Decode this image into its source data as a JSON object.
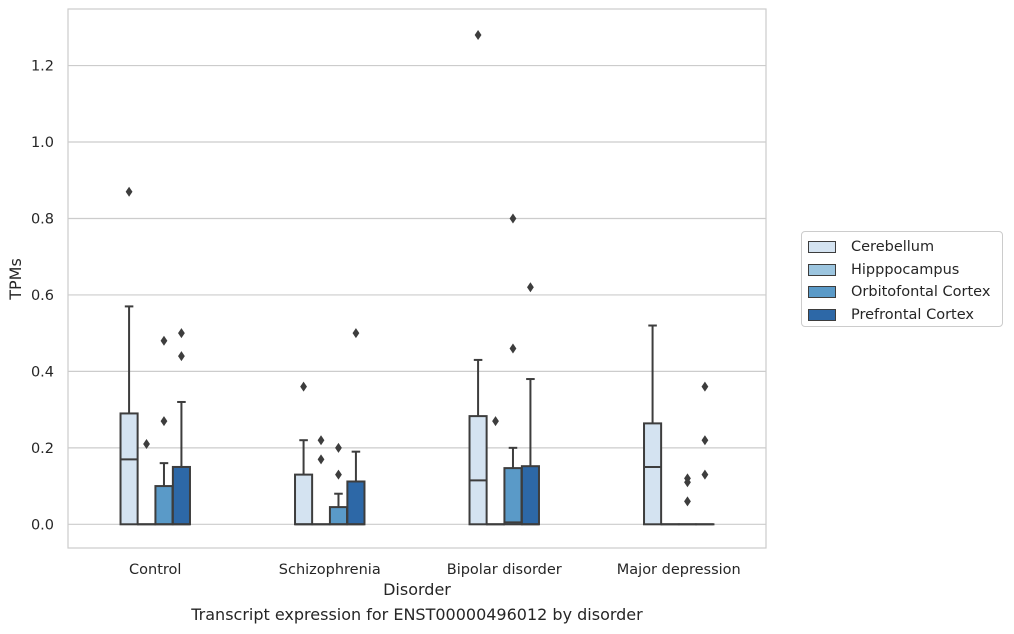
{
  "chart_data": {
    "type": "box",
    "xlabel": "Disorder",
    "ylabel": "TPMs",
    "caption": "Transcript expression for ENST00000496012 by disorder",
    "ylim": [
      -0.062,
      1.348
    ],
    "yticks": [
      0.0,
      0.2,
      0.4,
      0.6,
      0.8,
      1.0,
      1.2
    ],
    "ytick_labels": [
      "0.0",
      "0.2",
      "0.4",
      "0.6",
      "0.8",
      "1.0",
      "1.2"
    ],
    "grid": "horizontal",
    "legend_position": "right",
    "categories": [
      "Control",
      "Schizophrenia",
      "Bipolar disorder",
      "Major depression"
    ],
    "series": [
      {
        "name": "Cerebellum",
        "color": "#d4e3f1",
        "boxes": [
          {
            "whislo": 0.0,
            "q1": 0.0,
            "med": 0.17,
            "q3": 0.29,
            "whishi": 0.57,
            "fliers": [
              0.87
            ]
          },
          {
            "whislo": 0.0,
            "q1": 0.0,
            "med": 0.0,
            "q3": 0.13,
            "whishi": 0.22,
            "fliers": [
              0.36
            ]
          },
          {
            "whislo": 0.0,
            "q1": 0.0,
            "med": 0.115,
            "q3": 0.283,
            "whishi": 0.43,
            "fliers": [
              1.28
            ]
          },
          {
            "whislo": 0.0,
            "q1": 0.0,
            "med": 0.15,
            "q3": 0.264,
            "whishi": 0.52,
            "fliers": []
          }
        ]
      },
      {
        "name": "Hipppocampus",
        "color": "#9cc5df",
        "boxes": [
          {
            "whislo": 0.0,
            "q1": 0.0,
            "med": 0.0,
            "q3": 0.0,
            "whishi": 0.0,
            "fliers": [
              0.21
            ]
          },
          {
            "whislo": 0.0,
            "q1": 0.0,
            "med": 0.0,
            "q3": 0.0,
            "whishi": 0.0,
            "fliers": [
              0.17,
              0.22
            ]
          },
          {
            "whislo": 0.0,
            "q1": 0.0,
            "med": 0.0,
            "q3": 0.0,
            "whishi": 0.0,
            "fliers": [
              0.27
            ]
          },
          {
            "whislo": 0.0,
            "q1": 0.0,
            "med": 0.0,
            "q3": 0.0,
            "whishi": 0.0,
            "fliers": []
          }
        ]
      },
      {
        "name": "Orbitofontal Cortex",
        "color": "#5a9ac8",
        "boxes": [
          {
            "whislo": 0.0,
            "q1": 0.0,
            "med": 0.0,
            "q3": 0.1,
            "whishi": 0.16,
            "fliers": [
              0.27,
              0.48
            ]
          },
          {
            "whislo": 0.0,
            "q1": 0.0,
            "med": 0.0,
            "q3": 0.045,
            "whishi": 0.08,
            "fliers": [
              0.13,
              0.2
            ]
          },
          {
            "whislo": 0.0,
            "q1": 0.0,
            "med": 0.005,
            "q3": 0.147,
            "whishi": 0.2,
            "fliers": [
              0.46,
              0.8
            ]
          },
          {
            "whislo": 0.0,
            "q1": 0.0,
            "med": 0.0,
            "q3": 0.0,
            "whishi": 0.0,
            "fliers": [
              0.06,
              0.11,
              0.12
            ]
          }
        ]
      },
      {
        "name": "Prefrontal Cortex",
        "color": "#2d68a7",
        "boxes": [
          {
            "whislo": 0.0,
            "q1": 0.0,
            "med": 0.0,
            "q3": 0.15,
            "whishi": 0.32,
            "fliers": [
              0.44,
              0.5
            ]
          },
          {
            "whislo": 0.0,
            "q1": 0.0,
            "med": 0.0,
            "q3": 0.112,
            "whishi": 0.19,
            "fliers": [
              0.5
            ]
          },
          {
            "whislo": 0.0,
            "q1": 0.0,
            "med": 0.0,
            "q3": 0.152,
            "whishi": 0.38,
            "fliers": [
              0.62
            ]
          },
          {
            "whislo": 0.0,
            "q1": 0.0,
            "med": 0.0,
            "q3": 0.0,
            "whishi": 0.0,
            "fliers": [
              0.13,
              0.22,
              0.36
            ]
          }
        ]
      }
    ]
  }
}
